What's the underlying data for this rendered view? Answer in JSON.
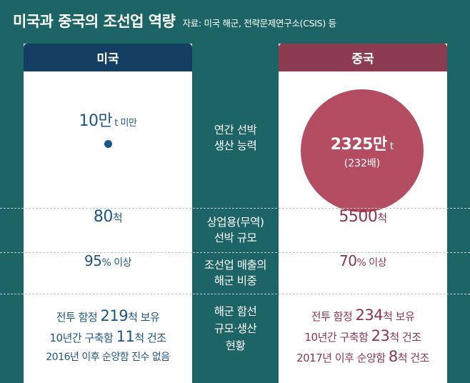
{
  "header": {
    "title": "미국과 중국의 조선업 역량",
    "source": "자료: 미국 해군, 전략문제연구소(CSIS) 등"
  },
  "columns": {
    "us": "미국",
    "china": "중국"
  },
  "rows": {
    "annual_capacity": {
      "label_line1": "연간 선박",
      "label_line2": "생산 능력",
      "us_value": "10만",
      "us_unit": "t 미만",
      "cn_value": "2325만",
      "cn_unit": "t",
      "cn_ratio": "(232배)"
    },
    "commercial_fleet": {
      "label_line1": "상업용(무역)",
      "label_line2": "선박 규모",
      "us_value": "80",
      "us_unit": "척",
      "cn_value": "5500",
      "cn_unit": "척"
    },
    "navy_revenue_share": {
      "label_line1": "조선업 매출의",
      "label_line2": "해군 비중",
      "us_value": "95",
      "us_unit": "% 이상",
      "cn_value": "70",
      "cn_unit": "% 이상"
    },
    "navy_status": {
      "label_line1": "해군 함선",
      "label_line2": "규모·생산",
      "label_line3": "현황",
      "us_l1_pre": "전투 함정 ",
      "us_l1_num": "219",
      "us_l1_post": "척 보유",
      "us_l2_pre": "10년간 구축함 ",
      "us_l2_num": "11",
      "us_l2_post": "척 건조",
      "us_l3": "2016년 이후 순양함 진수 없음",
      "cn_l1_pre": "전투 함정 ",
      "cn_l1_num": "234",
      "cn_l1_post": "척 보유",
      "cn_l2_pre": "10년간 구축함 ",
      "cn_l2_num": "23",
      "cn_l2_post": "척 건조",
      "cn_l3_pre": "2017년 이후 순양함 ",
      "cn_l3_num": "8",
      "cn_l3_post": "척 건조"
    }
  },
  "colors": {
    "background": "#1d6466",
    "us_header": "#143f63",
    "cn_header": "#8b3c51",
    "us_text": "#1b5588",
    "cn_text": "#8e3450",
    "cn_circle": "#b54d62"
  }
}
